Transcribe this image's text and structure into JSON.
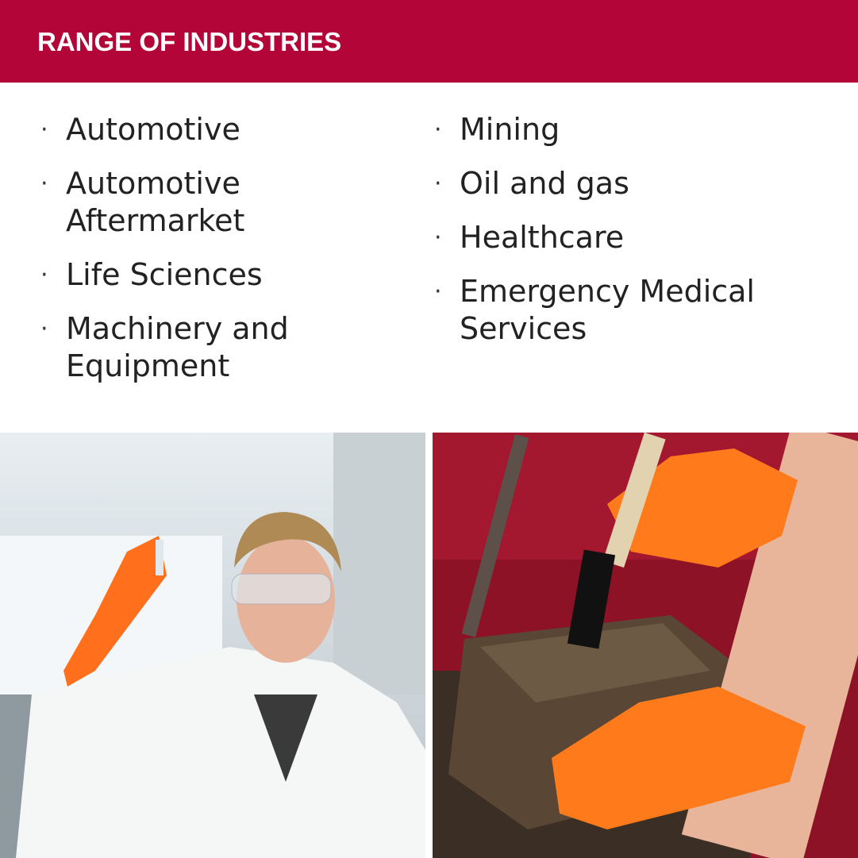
{
  "header": {
    "title": "RANGE OF INDUSTRIES",
    "background_color": "#b30537"
  },
  "industries": {
    "left": [
      "Automotive",
      "Automotive Aftermarket",
      "Life Sciences",
      "Machinery and Equipment"
    ],
    "right": [
      "Mining",
      "Oil and gas",
      "Healthcare",
      "Emergency Medical Services"
    ]
  },
  "photos": [
    {
      "subject": "scientist-in-lab-coat-with-orange-glove"
    },
    {
      "subject": "mechanic-cleaning-engine-part-with-orange-gloves"
    }
  ],
  "accent_color": "#ff7a1a"
}
